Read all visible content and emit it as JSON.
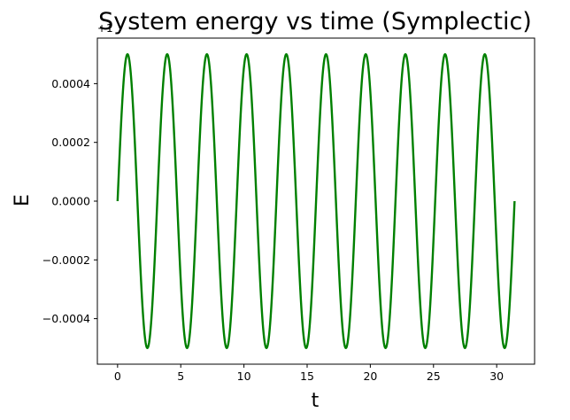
{
  "chart_data": {
    "type": "line",
    "title": "System energy vs time (Symplectic)",
    "xlabel": "t",
    "ylabel": "E",
    "y_offset_label": "+1",
    "xlim": [
      -1.6,
      33.0
    ],
    "ylim": [
      -0.000555,
      0.000555
    ],
    "x_ticks": [
      0,
      5,
      10,
      15,
      20,
      25,
      30
    ],
    "x_tick_labels": [
      "0",
      "5",
      "10",
      "15",
      "20",
      "25",
      "30"
    ],
    "y_ticks": [
      -0.0004,
      -0.0002,
      0.0,
      0.0002,
      0.0004
    ],
    "y_tick_labels": [
      "−0.0004",
      "−0.0002",
      "0.0000",
      "0.0002",
      "0.0004"
    ],
    "grid": false,
    "series": [
      {
        "color": "#008000",
        "function": "amplitude * sin(2*pi*t/period)",
        "amplitude": 0.0005,
        "period": 3.1416,
        "t_start": 0,
        "t_end": 31.416
      }
    ]
  }
}
